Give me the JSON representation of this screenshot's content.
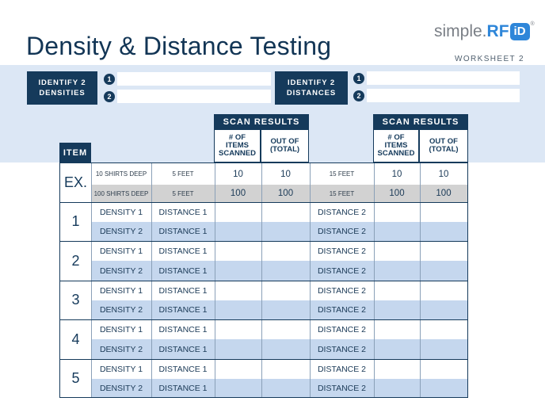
{
  "title": "Density & Distance Testing",
  "logo": {
    "simple": "simple.",
    "rf": "RF",
    "id": "iD",
    "tm": "®"
  },
  "worksheet": "WORKSHEET 2",
  "identify_densities": {
    "label_line1": "IDENTIFY 2",
    "label_line2": "DENSITIES",
    "n1": "1",
    "n2": "2"
  },
  "identify_distances": {
    "label_line1": "IDENTIFY 2",
    "label_line2": "DISTANCES",
    "n1": "1",
    "n2": "2"
  },
  "scan_results_1": {
    "title": "SCAN RESULTS",
    "col1": [
      "# OF",
      "ITEMS",
      "SCANNED"
    ],
    "col2": [
      "OUT OF",
      "(TOTAL)"
    ]
  },
  "scan_results_2": {
    "title": "SCAN RESULTS",
    "col1": [
      "# OF",
      "ITEMS",
      "SCANNED"
    ],
    "col2": [
      "OUT OF",
      "(TOTAL)"
    ]
  },
  "item_header": "ITEM",
  "example": {
    "label": "EX.",
    "rows": [
      {
        "density": "10 SHIRTS DEEP",
        "distance1": "5 FEET",
        "scanned1": "10",
        "total1": "10",
        "distance2": "15 FEET",
        "scanned2": "10",
        "total2": "10"
      },
      {
        "density": "100 SHIRTS DEEP",
        "distance1": "5 FEET",
        "scanned1": "100",
        "total1": "100",
        "distance2": "15 FEET",
        "scanned2": "100",
        "total2": "100"
      }
    ]
  },
  "items": [
    {
      "label": "1",
      "r1": {
        "density": "DENSITY 1",
        "distance1": "DISTANCE 1",
        "distance2": "DISTANCE 2"
      },
      "r2": {
        "density": "DENSITY 2",
        "distance1": "DISTANCE 1",
        "distance2": "DISTANCE 2"
      }
    },
    {
      "label": "2",
      "r1": {
        "density": "DENSITY 1",
        "distance1": "DISTANCE 1",
        "distance2": "DISTANCE 2"
      },
      "r2": {
        "density": "DENSITY 2",
        "distance1": "DISTANCE 1",
        "distance2": "DISTANCE 2"
      }
    },
    {
      "label": "3",
      "r1": {
        "density": "DENSITY 1",
        "distance1": "DISTANCE 1",
        "distance2": "DISTANCE 2"
      },
      "r2": {
        "density": "DENSITY 2",
        "distance1": "DISTANCE 1",
        "distance2": "DISTANCE 2"
      }
    },
    {
      "label": "4",
      "r1": {
        "density": "DENSITY 1",
        "distance1": "DISTANCE 1",
        "distance2": "DISTANCE 2"
      },
      "r2": {
        "density": "DENSITY 2",
        "distance1": "DISTANCE 1",
        "distance2": "DISTANCE 2"
      }
    },
    {
      "label": "5",
      "r1": {
        "density": "DENSITY 1",
        "distance1": "DISTANCE 1",
        "distance2": "DISTANCE 2"
      },
      "r2": {
        "density": "DENSITY 2",
        "distance1": "DISTANCE 1",
        "distance2": "DISTANCE 2"
      }
    }
  ],
  "colors": {
    "navy": "#153a5b",
    "band": "#dce7f5",
    "row_blue": "#c5d7ee",
    "example_gray": "#d2d2d2",
    "logo_blue": "#2e86d9"
  }
}
